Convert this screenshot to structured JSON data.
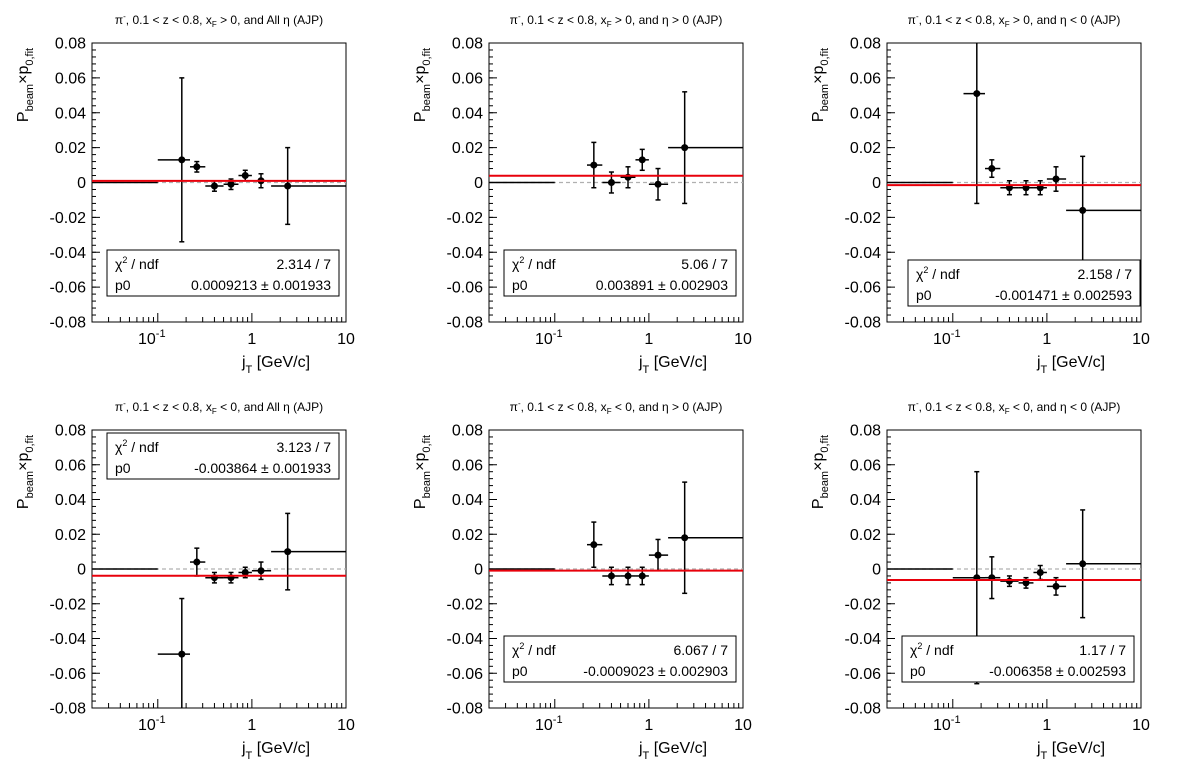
{
  "figure": {
    "xaxis_title_main": "j",
    "xaxis_title_sub": "T",
    "xaxis_title_unit": "[GeV/c]",
    "yaxis_title_main": "P",
    "yaxis_title_sub1": "beam",
    "yaxis_title_mid": "×p",
    "yaxis_title_sub2": "0,fit",
    "x_tick_labels": [
      "10",
      "-1",
      "1",
      "10"
    ],
    "y_tick_labels": [
      "0.08",
      "0.06",
      "0.04",
      "0.02",
      "0",
      "-0.02",
      "-0.04",
      "-0.06",
      "-0.08"
    ],
    "stats_chi2_label": "χ",
    "stats_chi2_sup": "2",
    "stats_chi2_rest": " / ndf",
    "stats_p0_label": "p0",
    "pm": "±"
  },
  "chart_data": [
    {
      "type": "scatter",
      "title": "π⁻, 0.1 < z < 0.8, x_F > 0, and All η (AJP)",
      "title_parts": {
        "pi": "π",
        "pisup": "-",
        "t1": ", 0.1 < z < 0.8, x",
        "xsub": "F",
        "t2": " > 0, and All ",
        "eta": "η",
        "t3": " (AJP)"
      },
      "xlabel": "j_T [GeV/c]",
      "ylabel": "P_beam×p_0,fit",
      "xscale": "log",
      "xlim": [
        0.02,
        10
      ],
      "ylim": [
        -0.08,
        0.08
      ],
      "points": [
        {
          "x": 0.055,
          "xlo": 0.02,
          "xhi": 0.1,
          "y": 0.0,
          "ey": 0.0
        },
        {
          "x": 0.18,
          "xlo": 0.1,
          "xhi": 0.22,
          "y": 0.013,
          "ey": 0.047
        },
        {
          "x": 0.26,
          "xlo": 0.22,
          "xhi": 0.32,
          "y": 0.009,
          "ey": 0.003
        },
        {
          "x": 0.4,
          "xlo": 0.32,
          "xhi": 0.5,
          "y": -0.002,
          "ey": 0.003
        },
        {
          "x": 0.6,
          "xlo": 0.5,
          "xhi": 0.72,
          "y": -0.001,
          "ey": 0.003
        },
        {
          "x": 0.85,
          "xlo": 0.72,
          "xhi": 1.0,
          "y": 0.004,
          "ey": 0.003
        },
        {
          "x": 1.25,
          "xlo": 1.0,
          "xhi": 1.6,
          "y": 0.001,
          "ey": 0.004
        },
        {
          "x": 2.4,
          "xlo": 1.6,
          "xhi": 10,
          "y": -0.002,
          "ey": 0.022
        }
      ],
      "fit": {
        "p0": 0.0009213,
        "error": 0.001933,
        "chi2": "2.314 / 7",
        "p0_text": "0.0009213",
        "err_text": "0.001933"
      },
      "stats_position": "bottom-center"
    },
    {
      "type": "scatter",
      "title": "π⁻, 0.1 < z < 0.8, x_F > 0, and η > 0 (AJP)",
      "title_parts": {
        "pi": "π",
        "pisup": "-",
        "t1": ", 0.1 < z < 0.8, x",
        "xsub": "F",
        "t2": " > 0, and ",
        "eta": "η",
        "t3": " > 0 (AJP)"
      },
      "xlabel": "j_T [GeV/c]",
      "ylabel": "P_beam×p_0,fit",
      "xscale": "log",
      "xlim": [
        0.02,
        10
      ],
      "ylim": [
        -0.08,
        0.08
      ],
      "points": [
        {
          "x": 0.055,
          "xlo": 0.02,
          "xhi": 0.1,
          "y": 0.0,
          "ey": 0.0
        },
        {
          "x": 0.26,
          "xlo": 0.22,
          "xhi": 0.32,
          "y": 0.01,
          "ey": 0.013
        },
        {
          "x": 0.4,
          "xlo": 0.32,
          "xhi": 0.5,
          "y": 0.0,
          "ey": 0.006
        },
        {
          "x": 0.6,
          "xlo": 0.5,
          "xhi": 0.72,
          "y": 0.003,
          "ey": 0.006
        },
        {
          "x": 0.85,
          "xlo": 0.72,
          "xhi": 1.0,
          "y": 0.013,
          "ey": 0.006
        },
        {
          "x": 1.25,
          "xlo": 1.0,
          "xhi": 1.6,
          "y": -0.001,
          "ey": 0.009
        },
        {
          "x": 2.4,
          "xlo": 1.6,
          "xhi": 10,
          "y": 0.02,
          "ey": 0.032
        }
      ],
      "fit": {
        "p0": 0.003891,
        "error": 0.002903,
        "chi2": "5.06 / 7",
        "p0_text": "0.003891",
        "err_text": "0.002903"
      },
      "stats_position": "bottom-center"
    },
    {
      "type": "scatter",
      "title": "π⁻, 0.1 < z < 0.8, x_F > 0, and η < 0 (AJP)",
      "title_parts": {
        "pi": "π",
        "pisup": "-",
        "t1": ", 0.1 < z < 0.8, x",
        "xsub": "F",
        "t2": " > 0, and ",
        "eta": "η",
        "t3": " < 0 (AJP)"
      },
      "xlabel": "j_T [GeV/c]",
      "ylabel": "P_beam×p_0,fit",
      "xscale": "log",
      "xlim": [
        0.02,
        10
      ],
      "ylim": [
        -0.08,
        0.08
      ],
      "points": [
        {
          "x": 0.055,
          "xlo": 0.02,
          "xhi": 0.1,
          "y": 0.0,
          "ey": 0.0
        },
        {
          "x": 0.18,
          "xlo": 0.13,
          "xhi": 0.22,
          "y": 0.051,
          "ey": 0.063
        },
        {
          "x": 0.26,
          "xlo": 0.22,
          "xhi": 0.32,
          "y": 0.008,
          "ey": 0.005
        },
        {
          "x": 0.4,
          "xlo": 0.32,
          "xhi": 0.5,
          "y": -0.003,
          "ey": 0.004
        },
        {
          "x": 0.6,
          "xlo": 0.5,
          "xhi": 0.72,
          "y": -0.003,
          "ey": 0.004
        },
        {
          "x": 0.85,
          "xlo": 0.72,
          "xhi": 1.0,
          "y": -0.003,
          "ey": 0.004
        },
        {
          "x": 1.25,
          "xlo": 1.0,
          "xhi": 1.6,
          "y": 0.002,
          "ey": 0.007
        },
        {
          "x": 2.4,
          "xlo": 1.6,
          "xhi": 10,
          "y": -0.016,
          "ey": 0.031
        }
      ],
      "fit": {
        "p0": -0.001471,
        "error": 0.002593,
        "chi2": "2.158 / 7",
        "p0_text": "-0.001471",
        "err_text": "0.002593"
      },
      "stats_position": "bottom-right"
    },
    {
      "type": "scatter",
      "title": "π⁻, 0.1 < z < 0.8, x_F < 0, and All η (AJP)",
      "title_parts": {
        "pi": "π",
        "pisup": "-",
        "t1": ", 0.1 < z < 0.8, x",
        "xsub": "F",
        "t2": " < 0, and All ",
        "eta": "η",
        "t3": " (AJP)"
      },
      "xlabel": "j_T [GeV/c]",
      "ylabel": "P_beam×p_0,fit",
      "xscale": "log",
      "xlim": [
        0.02,
        10
      ],
      "ylim": [
        -0.08,
        0.08
      ],
      "points": [
        {
          "x": 0.055,
          "xlo": 0.02,
          "xhi": 0.1,
          "y": 0.0,
          "ey": 0.0
        },
        {
          "x": 0.18,
          "xlo": 0.1,
          "xhi": 0.22,
          "y": -0.049,
          "ey": 0.032
        },
        {
          "x": 0.26,
          "xlo": 0.22,
          "xhi": 0.32,
          "y": 0.004,
          "ey": 0.008
        },
        {
          "x": 0.4,
          "xlo": 0.32,
          "xhi": 0.5,
          "y": -0.005,
          "ey": 0.003
        },
        {
          "x": 0.6,
          "xlo": 0.5,
          "xhi": 0.72,
          "y": -0.005,
          "ey": 0.003
        },
        {
          "x": 0.85,
          "xlo": 0.72,
          "xhi": 1.0,
          "y": -0.002,
          "ey": 0.003
        },
        {
          "x": 1.25,
          "xlo": 1.0,
          "xhi": 1.6,
          "y": -0.001,
          "ey": 0.005
        },
        {
          "x": 2.4,
          "xlo": 1.6,
          "xhi": 10,
          "y": 0.01,
          "ey": 0.022
        }
      ],
      "fit": {
        "p0": -0.003864,
        "error": 0.001933,
        "chi2": "3.123 / 7",
        "p0_text": "-0.003864",
        "err_text": "0.001933"
      },
      "stats_position": "top-center"
    },
    {
      "type": "scatter",
      "title": "π⁻, 0.1 < z < 0.8, x_F < 0, and η > 0 (AJP)",
      "title_parts": {
        "pi": "π",
        "pisup": "-",
        "t1": ", 0.1 < z < 0.8, x",
        "xsub": "F",
        "t2": " < 0, and ",
        "eta": "η",
        "t3": " > 0 (AJP)"
      },
      "xlabel": "j_T [GeV/c]",
      "ylabel": "P_beam×p_0,fit",
      "xscale": "log",
      "xlim": [
        0.02,
        10
      ],
      "ylim": [
        -0.08,
        0.08
      ],
      "points": [
        {
          "x": 0.055,
          "xlo": 0.02,
          "xhi": 0.1,
          "y": 0.0,
          "ey": 0.0
        },
        {
          "x": 0.26,
          "xlo": 0.22,
          "xhi": 0.32,
          "y": 0.014,
          "ey": 0.013
        },
        {
          "x": 0.4,
          "xlo": 0.32,
          "xhi": 0.5,
          "y": -0.004,
          "ey": 0.005
        },
        {
          "x": 0.6,
          "xlo": 0.5,
          "xhi": 0.72,
          "y": -0.004,
          "ey": 0.005
        },
        {
          "x": 0.85,
          "xlo": 0.72,
          "xhi": 1.0,
          "y": -0.004,
          "ey": 0.005
        },
        {
          "x": 1.25,
          "xlo": 1.0,
          "xhi": 1.6,
          "y": 0.008,
          "ey": 0.009
        },
        {
          "x": 2.4,
          "xlo": 1.6,
          "xhi": 10,
          "y": 0.018,
          "ey": 0.032
        }
      ],
      "fit": {
        "p0": -0.0009023,
        "error": 0.002903,
        "chi2": "6.067 / 7",
        "p0_text": "-0.0009023",
        "err_text": "0.002903"
      },
      "stats_position": "bottom-center"
    },
    {
      "type": "scatter",
      "title": "π⁻, 0.1 < z < 0.8, x_F < 0, and η < 0 (AJP)",
      "title_parts": {
        "pi": "π",
        "pisup": "-",
        "t1": ", 0.1 < z < 0.8, x",
        "xsub": "F",
        "t2": " < 0, and ",
        "eta": "η",
        "t3": " < 0 (AJP)"
      },
      "xlabel": "j_T [GeV/c]",
      "ylabel": "P_beam×p_0,fit",
      "xscale": "log",
      "xlim": [
        0.02,
        10
      ],
      "ylim": [
        -0.08,
        0.08
      ],
      "points": [
        {
          "x": 0.055,
          "xlo": 0.02,
          "xhi": 0.1,
          "y": 0.0,
          "ey": 0.0
        },
        {
          "x": 0.18,
          "xlo": 0.1,
          "xhi": 0.22,
          "y": -0.005,
          "ey": 0.061
        },
        {
          "x": 0.26,
          "xlo": 0.22,
          "xhi": 0.32,
          "y": -0.005,
          "ey": 0.012
        },
        {
          "x": 0.4,
          "xlo": 0.32,
          "xhi": 0.5,
          "y": -0.007,
          "ey": 0.003
        },
        {
          "x": 0.6,
          "xlo": 0.5,
          "xhi": 0.72,
          "y": -0.008,
          "ey": 0.003
        },
        {
          "x": 0.85,
          "xlo": 0.72,
          "xhi": 1.0,
          "y": -0.002,
          "ey": 0.004
        },
        {
          "x": 1.25,
          "xlo": 1.0,
          "xhi": 1.6,
          "y": -0.01,
          "ey": 0.005
        },
        {
          "x": 2.4,
          "xlo": 1.6,
          "xhi": 10,
          "y": 0.003,
          "ey": 0.031
        }
      ],
      "fit": {
        "p0": -0.006358,
        "error": 0.002593,
        "chi2": "1.17 / 7",
        "p0_text": "-0.006358",
        "err_text": "0.002593"
      },
      "stats_position": "bottom-center"
    }
  ],
  "colors": {
    "fit_line": "#e8000b",
    "zero_line": "#b0b0b0",
    "marker": "#000000",
    "axis": "#000000"
  }
}
